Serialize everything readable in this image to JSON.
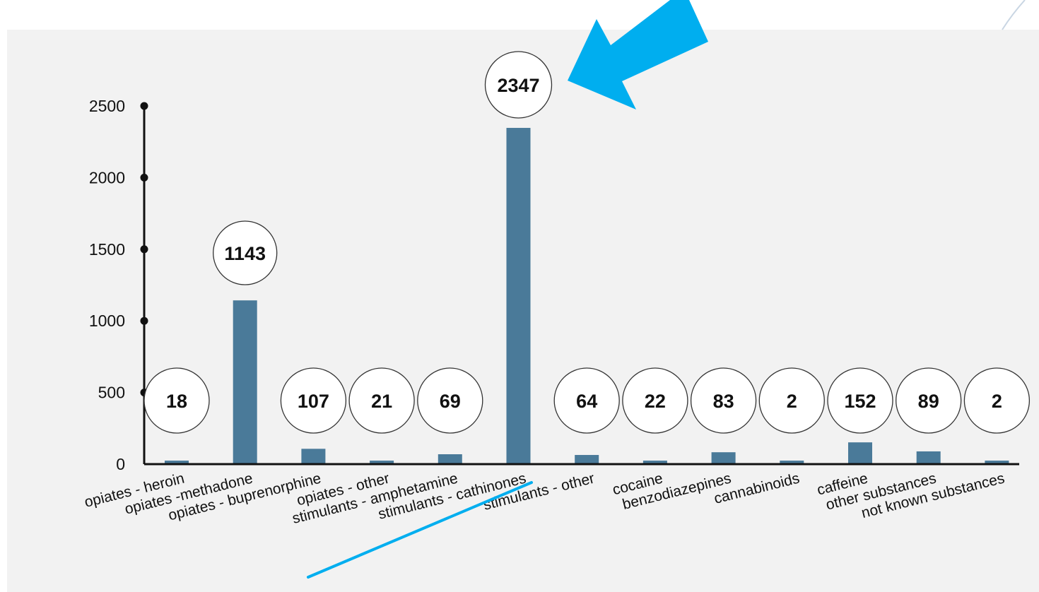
{
  "colors": {
    "bar": "#4a7a99",
    "axis": "#111111",
    "callout_fill": "#ffffff",
    "accent_arrow": "#00aeef",
    "panel_background": "#f2f2f2"
  },
  "icons": {
    "arrow": "arrow-icon",
    "underline": "highlight-underline"
  },
  "chart_data": {
    "type": "bar",
    "categories": [
      "opiates - heroin",
      "opiates -methadone",
      "opiates - buprenorphine",
      "opiates - other",
      "stimulants - amphetamine",
      "stimulants - cathinones",
      "stimulants - other",
      "cocaine",
      "benzodiazepines",
      "cannabinoids",
      "caffeine",
      "other substances",
      "not known substances"
    ],
    "values": [
      18,
      1143,
      107,
      21,
      69,
      2347,
      64,
      22,
      83,
      2,
      152,
      89,
      2
    ],
    "value_labels": [
      "18",
      "1143",
      "107",
      "21",
      "69",
      "2347",
      "64",
      "22",
      "83",
      "2",
      "152",
      "89",
      "2"
    ],
    "highlight_category": "stimulants - cathinones",
    "yticks": [
      "0",
      "500",
      "1000",
      "1500",
      "2000",
      "2500"
    ],
    "ylim": [
      0,
      2500
    ],
    "grid": false,
    "legend": "none"
  }
}
